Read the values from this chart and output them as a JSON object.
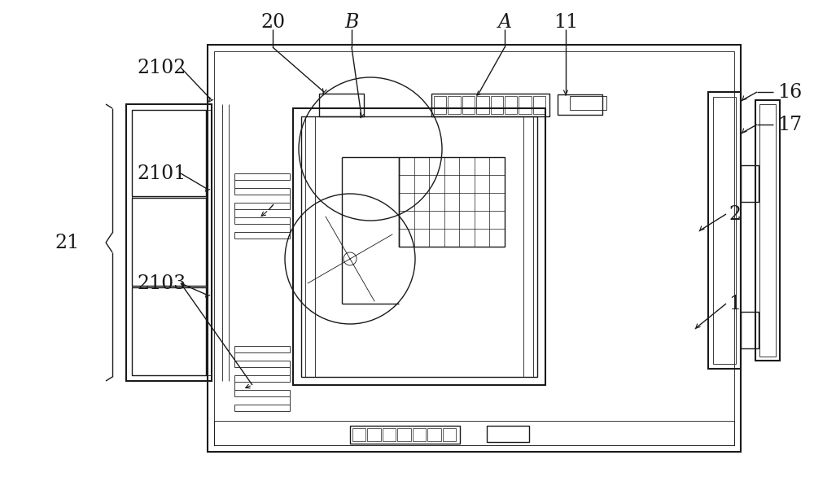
{
  "bg_color": "#ffffff",
  "lc": "#1a1a1a",
  "lw_main": 1.5,
  "lw_med": 1.0,
  "lw_thin": 0.6,
  "fs": 17,
  "fs_small": 15
}
